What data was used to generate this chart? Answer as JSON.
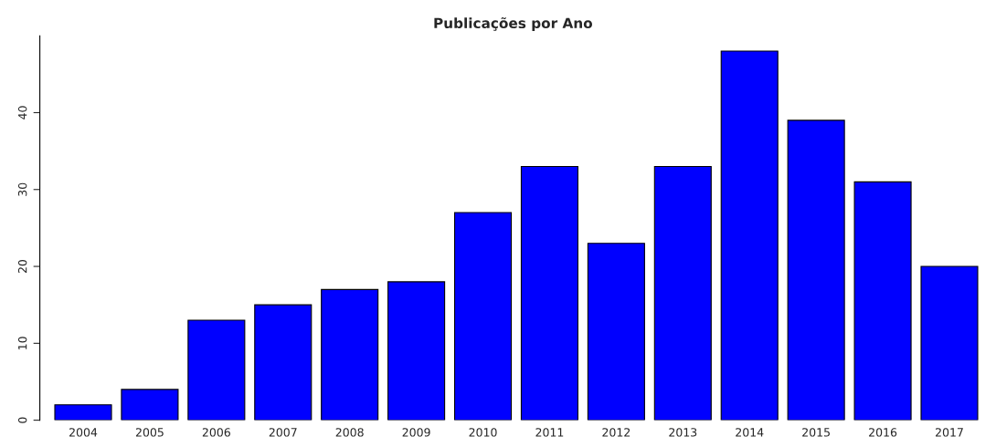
{
  "chart_data": {
    "type": "bar",
    "title": "Publicações por Ano",
    "categories": [
      "2004",
      "2005",
      "2006",
      "2007",
      "2008",
      "2009",
      "2010",
      "2011",
      "2012",
      "2013",
      "2014",
      "2015",
      "2016",
      "2017"
    ],
    "values": [
      2,
      4,
      13,
      15,
      17,
      18,
      27,
      33,
      23,
      33,
      48,
      39,
      31,
      20
    ],
    "color": "#0000ff",
    "ylim": [
      0,
      50
    ],
    "yticks": [
      0,
      10,
      20,
      30,
      40
    ],
    "grid": false
  }
}
